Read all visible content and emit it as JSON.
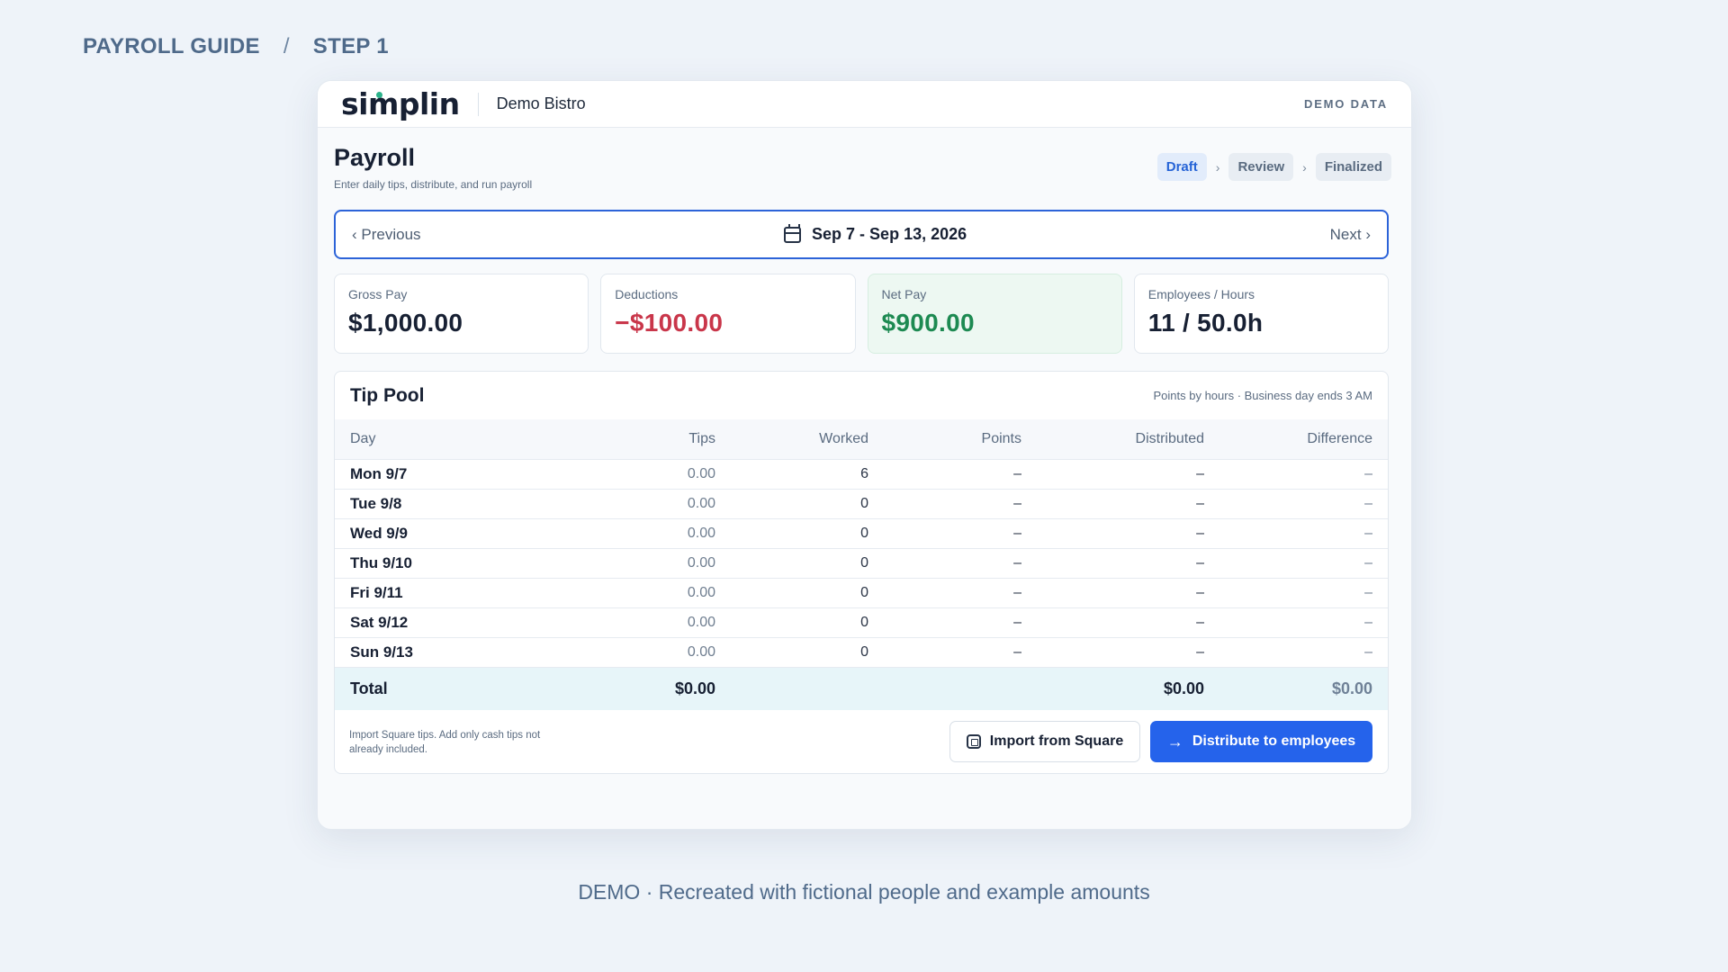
{
  "guide": {
    "title": "PAYROLL GUIDE",
    "separator": "/",
    "step": "STEP 1"
  },
  "topbar": {
    "logo": "simplin",
    "business": "Demo Bistro",
    "badge": "DEMO DATA"
  },
  "page": {
    "title": "Payroll",
    "subtitle": "Enter daily tips, distribute, and run payroll"
  },
  "steps": [
    {
      "label": "Draft",
      "active": true
    },
    {
      "label": "Review",
      "active": false
    },
    {
      "label": "Finalized",
      "active": false
    }
  ],
  "period": {
    "prev": "‹ Previous",
    "range": "Sep 7 - Sep 13, 2026",
    "next": "Next ›",
    "icon": "calendar-icon"
  },
  "stats": {
    "gross": {
      "label": "Gross Pay",
      "value": "$1,000.00"
    },
    "deductions": {
      "label": "Deductions",
      "value": "−$100.00"
    },
    "net": {
      "label": "Net Pay",
      "value": "$900.00"
    },
    "employees": {
      "label": "Employees / Hours",
      "value": "11 / 50.0h"
    }
  },
  "tip_pool": {
    "title": "Tip Pool",
    "note": "Points by hours · Business day ends 3 AM",
    "columns": [
      "Day",
      "Tips",
      "Worked",
      "Points",
      "Distributed",
      "Difference"
    ],
    "rows": [
      [
        "Mon 9/7",
        "0.00",
        "6",
        "–",
        "–",
        "–"
      ],
      [
        "Tue 9/8",
        "0.00",
        "0",
        "–",
        "–",
        "–"
      ],
      [
        "Wed 9/9",
        "0.00",
        "0",
        "–",
        "–",
        "–"
      ],
      [
        "Thu 9/10",
        "0.00",
        "0",
        "–",
        "–",
        "–"
      ],
      [
        "Fri 9/11",
        "0.00",
        "0",
        "–",
        "–",
        "–"
      ],
      [
        "Sat 9/12",
        "0.00",
        "0",
        "–",
        "–",
        "–"
      ],
      [
        "Sun 9/13",
        "0.00",
        "0",
        "–",
        "–",
        "–"
      ]
    ],
    "total": {
      "label": "Total",
      "tips": "$0.00",
      "distributed": "$0.00",
      "difference": "$0.00"
    },
    "footer_note": "Import Square tips. Add only cash tips not already included.",
    "import_button": "Import from Square",
    "distribute_button": "Distribute to employees"
  },
  "caption": "DEMO · Recreated with fictional people and example amounts",
  "colors": {
    "accent": "#2563eb",
    "positive": "#1d8a52",
    "negative": "#c9364a",
    "background": "#eef3f9"
  }
}
